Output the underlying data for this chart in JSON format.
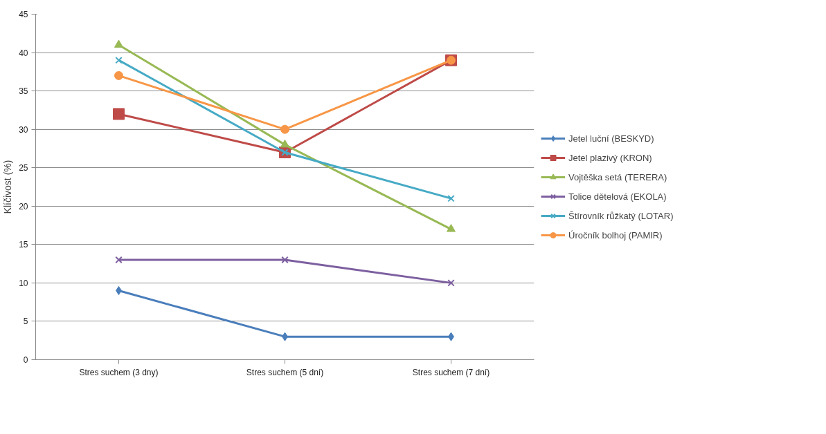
{
  "chart_data": {
    "type": "line",
    "ylabel": "Klíčivost (%)",
    "categories": [
      "Stres suchem (3 dny)",
      "Stres suchem (5 dní)",
      "Stres suchem (7 dní)"
    ],
    "ylim": [
      0,
      45
    ],
    "yticks": [
      0,
      5,
      10,
      15,
      20,
      25,
      30,
      35,
      40,
      45
    ],
    "grid": "y",
    "legend": "right",
    "line_style": "solid",
    "series": [
      {
        "name": "Jetel luční (BESKYD)",
        "color": "#4a7ebb",
        "marker": "diamond",
        "values": [
          9,
          3,
          3
        ]
      },
      {
        "name": "Jetel plazivý (KRON)",
        "color": "#be4b48",
        "marker": "square",
        "values": [
          32,
          27,
          39
        ]
      },
      {
        "name": "Vojtěška setá (TERERA)",
        "color": "#98b954",
        "marker": "triangle",
        "values": [
          41,
          28,
          17
        ]
      },
      {
        "name": "Tolice dětelová (EKOLA)",
        "color": "#7d5fa0",
        "marker": "cross",
        "values": [
          13,
          13,
          10
        ]
      },
      {
        "name": "Štírovník růžkatý (LOTAR)",
        "color": "#46aac5",
        "marker": "cross",
        "values": [
          39,
          27,
          21
        ]
      },
      {
        "name": "Úročník bolhoj (PAMIR)",
        "color": "#f79646",
        "marker": "circle",
        "values": [
          37,
          30,
          39
        ]
      }
    ]
  }
}
